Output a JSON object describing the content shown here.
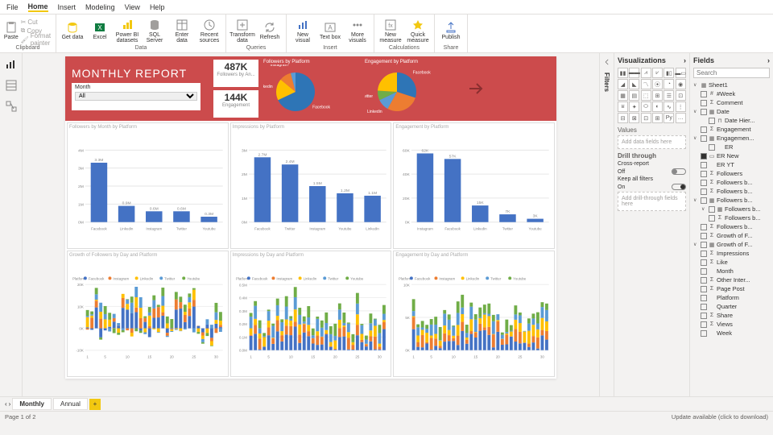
{
  "menu": {
    "items": [
      "File",
      "Home",
      "Insert",
      "Modeling",
      "View",
      "Help"
    ],
    "active": 1
  },
  "ribbon": {
    "clipboard": {
      "paste": "Paste",
      "cut": "Cut",
      "copy": "Copy",
      "painter": "Format painter",
      "label": "Clipboard"
    },
    "data": {
      "get": "Get data",
      "excel": "Excel",
      "pbi": "Power BI datasets",
      "sql": "SQL Server",
      "enter": "Enter data",
      "recent": "Recent sources",
      "label": "Data"
    },
    "queries": {
      "transform": "Transform data",
      "refresh": "Refresh",
      "label": "Queries"
    },
    "insert": {
      "visual": "New visual",
      "text": "Text box",
      "more": "More visuals",
      "label": "Insert"
    },
    "calc": {
      "measure": "New measure",
      "quick": "Quick measure",
      "label": "Calculations"
    },
    "share": {
      "publish": "Publish",
      "label": "Share"
    }
  },
  "report": {
    "title": "MONTHLY REPORT",
    "slicer": {
      "label": "Month",
      "value": "All"
    },
    "kpi": [
      {
        "value": "487K",
        "label": "Followers by An..."
      },
      {
        "value": "144K",
        "label": "Engagement"
      }
    ],
    "pies": [
      {
        "title": "Followers by Platform",
        "slices": [
          {
            "label": "Facebook",
            "value": 68,
            "color": "#2e75b6"
          },
          {
            "label": "Linkedin",
            "value": 18,
            "color": "#ffc000"
          },
          {
            "label": "Instagram",
            "value": 10,
            "color": "#ed7d31"
          },
          {
            "label": "Twitter",
            "value": 4,
            "color": "#5b9bd5"
          }
        ]
      },
      {
        "title": "Engagement by Platform",
        "slices": [
          {
            "label": "Facebook",
            "value": 30,
            "color": "#2e75b6"
          },
          {
            "label": "Instagram",
            "value": 28,
            "color": "#ed7d31"
          },
          {
            "label": "Linkedin",
            "value": 10,
            "color": "#5b9bd5"
          },
          {
            "label": "Twitter",
            "value": 8,
            "color": "#70ad47"
          },
          {
            "label": "",
            "value": 24,
            "color": "#ffc000"
          }
        ]
      }
    ],
    "bar_charts": [
      {
        "title": "Followers by Month by Platform",
        "categories": [
          "Facebook",
          "Linkedin",
          "Instagram",
          "Twitter",
          "Youtube"
        ],
        "values": [
          3300000,
          900000,
          600000,
          600000,
          300000
        ],
        "value_labels": [
          "3.3M",
          "0.9M",
          "0.6M",
          "0.6M",
          "0.3M"
        ],
        "yticks": [
          "0M",
          "1M",
          "2M",
          "3M",
          "4M"
        ],
        "ymax": 4000000,
        "bar_color": "#4472c4",
        "grid_color": "#e6e6e6",
        "text_color": "#888"
      },
      {
        "title": "Impressions by Platform",
        "categories": [
          "Facebook",
          "Twitter",
          "Instagram",
          "Youtube",
          "Linkedin"
        ],
        "values": [
          2700000,
          2400000,
          1500000,
          1200000,
          1100000
        ],
        "value_labels": [
          "2.7M",
          "2.4M",
          "1.5M",
          "1.2M",
          "1.1M"
        ],
        "yticks": [
          "0M",
          "1M",
          "2M",
          "3M"
        ],
        "ymax": 3000000,
        "bar_color": "#4472c4",
        "grid_color": "#e6e6e6",
        "text_color": "#888"
      },
      {
        "title": "Engagement by Platform",
        "categories": [
          "Instagram",
          "Facebook",
          "Linkedin",
          "Twitter",
          "Youtube"
        ],
        "values": [
          62000,
          57000,
          15000,
          7000,
          3000
        ],
        "value_labels": [
          "62K",
          "57K",
          "15K",
          "7K",
          "3K"
        ],
        "yticks": [
          "0K",
          "20K",
          "40K",
          "60K"
        ],
        "ymax": 65000,
        "bar_color": "#4472c4",
        "grid_color": "#e6e6e6",
        "text_color": "#888"
      }
    ],
    "stacked_charts": [
      {
        "title": "Growth of Followers by Day and Platform",
        "y_range": [
          -10000,
          20000
        ],
        "yticks": [
          "-10K",
          "0K",
          "10K",
          "20K"
        ]
      },
      {
        "title": "Impressions by Day and Platform",
        "y_range": [
          0,
          500000
        ],
        "yticks": [
          "0.0M",
          "0.1M",
          "0.2M",
          "0.3M",
          "0.4M",
          "0.5M"
        ]
      },
      {
        "title": "Engagement by Day and Platform",
        "y_range": [
          0,
          10000
        ],
        "yticks": [
          "0K",
          "5K",
          "10K"
        ]
      }
    ],
    "stacked_legend": {
      "label": "Platform",
      "items": [
        {
          "name": "Facebook",
          "color": "#4472c4"
        },
        {
          "name": "Instagram",
          "color": "#ed7d31"
        },
        {
          "name": "Linkedin",
          "color": "#ffc000"
        },
        {
          "name": "Twitter",
          "color": "#5b9bd5"
        },
        {
          "name": "Youtube",
          "color": "#70ad47"
        }
      ]
    },
    "x_days": [
      1,
      5,
      10,
      15,
      20,
      25,
      30
    ]
  },
  "viz_pane": {
    "title": "Visualizations",
    "values_label": "Values",
    "values_placeholder": "Add data fields here",
    "drill_label": "Drill through",
    "cross_report": "Cross-report",
    "keep_filters": "Keep all filters",
    "off": "Off",
    "on": "On",
    "drill_placeholder": "Add drill-through fields here"
  },
  "fields_pane": {
    "title": "Fields",
    "search_placeholder": "Search",
    "table": "Sheet1",
    "items": [
      {
        "n": "#Week",
        "t": "num"
      },
      {
        "n": "Comment",
        "t": "sum"
      },
      {
        "n": "Date",
        "t": "date",
        "exp": true
      },
      {
        "n": "Date Hier...",
        "t": "hier",
        "d": 1
      },
      {
        "n": "Engagement",
        "t": "sum"
      },
      {
        "n": "Engagemen...",
        "t": "grp",
        "exp": true
      },
      {
        "n": "ER",
        "t": "",
        "d": 1
      },
      {
        "n": "ER New",
        "t": "calc",
        "ck": true
      },
      {
        "n": "ER YT",
        "t": ""
      },
      {
        "n": "Followers",
        "t": "sum"
      },
      {
        "n": "Followers b...",
        "t": "sum"
      },
      {
        "n": "Followers b...",
        "t": "sum"
      },
      {
        "n": "Followers b...",
        "t": "grp",
        "exp": true
      },
      {
        "n": "Followers b...",
        "t": "grp",
        "d": 1,
        "exp": true
      },
      {
        "n": "Followers b...",
        "t": "sum",
        "d": 1
      },
      {
        "n": "Followers b...",
        "t": "sum"
      },
      {
        "n": "Growth of F...",
        "t": "sum"
      },
      {
        "n": "Growth of F...",
        "t": "grp",
        "exp": true
      },
      {
        "n": "Impressions",
        "t": "sum"
      },
      {
        "n": "Like",
        "t": "sum"
      },
      {
        "n": "Month",
        "t": ""
      },
      {
        "n": "Other Inter...",
        "t": "sum"
      },
      {
        "n": "Page Post",
        "t": "sum"
      },
      {
        "n": "Platform",
        "t": ""
      },
      {
        "n": "Quarter",
        "t": ""
      },
      {
        "n": "Share",
        "t": "sum"
      },
      {
        "n": "Views",
        "t": "sum"
      },
      {
        "n": "Week",
        "t": ""
      }
    ]
  },
  "tabs": {
    "items": [
      "Monthly",
      "Annual"
    ],
    "active": 0
  },
  "status": {
    "page": "Page 1 of 2",
    "update": "Update available (click to download)"
  },
  "filters_label": "Filters"
}
